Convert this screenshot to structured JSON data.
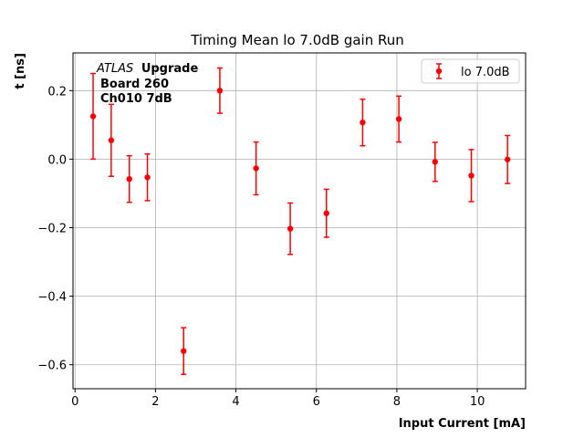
{
  "chart_data": {
    "type": "scatter",
    "title": "Timing Mean lo 7.0dB gain Run",
    "xlabel": "Input Current [mA]",
    "ylabel": "t [ns]",
    "xlim": [
      -0.05,
      11.2
    ],
    "ylim": [
      -0.67,
      0.31
    ],
    "xticks": [
      0,
      2,
      4,
      6,
      8,
      10
    ],
    "yticks": [
      -0.6,
      -0.4,
      -0.2,
      0.0,
      0.2
    ],
    "ytick_labels": [
      "−0.6",
      "−0.4",
      "−0.2",
      "0.0",
      "0.2"
    ],
    "grid": true,
    "legend_position": "top-right",
    "annotation": {
      "line1_italic": "ATLAS",
      "line1_bold": "Upgrade",
      "line2": "Board 260",
      "line3": "Ch010 7dB"
    },
    "series": [
      {
        "name": "lo 7.0dB",
        "color": "#ff0000",
        "x": [
          0.45,
          0.9,
          1.35,
          1.8,
          2.7,
          3.6,
          4.5,
          5.35,
          6.25,
          7.15,
          8.05,
          8.95,
          9.85,
          10.75
        ],
        "y": [
          0.125,
          0.055,
          -0.058,
          -0.053,
          -0.56,
          0.2,
          -0.027,
          -0.203,
          -0.158,
          0.107,
          0.117,
          -0.008,
          -0.048,
          -0.001
        ],
        "yerr": [
          0.125,
          0.105,
          0.068,
          0.068,
          0.068,
          0.066,
          0.077,
          0.075,
          0.07,
          0.068,
          0.067,
          0.057,
          0.076,
          0.07
        ]
      }
    ]
  }
}
